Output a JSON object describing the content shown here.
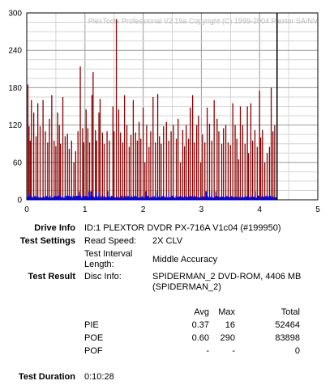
{
  "chart_data": {
    "type": "bar",
    "watermark": "PlexTools Professional V2.19a Copyright (C) 1999-2004 Plextor SA/NV",
    "xlim": [
      0,
      5
    ],
    "ylim": [
      0,
      300
    ],
    "x_ticks": [
      "0",
      "1",
      "2",
      "3",
      "4",
      "5"
    ],
    "y_ticks": [
      "0",
      "60",
      "120",
      "180",
      "240",
      "300"
    ],
    "end_marker_x": 4.3,
    "series": [
      {
        "color": "#8b0000",
        "points": [
          [
            0.02,
            185
          ],
          [
            0.04,
            118
          ],
          [
            0.06,
            95
          ],
          [
            0.08,
            160
          ],
          [
            0.12,
            140
          ],
          [
            0.16,
            102
          ],
          [
            0.19,
            155
          ],
          [
            0.23,
            118
          ],
          [
            0.28,
            160
          ],
          [
            0.32,
            110
          ],
          [
            0.36,
            92
          ],
          [
            0.39,
            130
          ],
          [
            0.43,
            168
          ],
          [
            0.47,
            95
          ],
          [
            0.5,
            86
          ],
          [
            0.53,
            140
          ],
          [
            0.56,
            120
          ],
          [
            0.58,
            90
          ],
          [
            0.62,
            165
          ],
          [
            0.66,
            102
          ],
          [
            0.7,
            106
          ],
          [
            0.73,
            82
          ],
          [
            0.77,
            95
          ],
          [
            0.81,
            60
          ],
          [
            0.84,
            78
          ],
          [
            0.88,
            110
          ],
          [
            0.92,
            214
          ],
          [
            0.96,
            115
          ],
          [
            0.98,
            92
          ],
          [
            1.02,
            145
          ],
          [
            1.05,
            115
          ],
          [
            1.08,
            92
          ],
          [
            1.12,
            168
          ],
          [
            1.14,
            205
          ],
          [
            1.18,
            112
          ],
          [
            1.2,
            95
          ],
          [
            1.24,
            140
          ],
          [
            1.26,
            162
          ],
          [
            1.3,
            108
          ],
          [
            1.33,
            90
          ],
          [
            1.38,
            110
          ],
          [
            1.42,
            95
          ],
          [
            1.48,
            150
          ],
          [
            1.5,
            110
          ],
          [
            1.54,
            290
          ],
          [
            1.58,
            145
          ],
          [
            1.61,
            108
          ],
          [
            1.65,
            92
          ],
          [
            1.68,
            168
          ],
          [
            1.72,
            120
          ],
          [
            1.76,
            85
          ],
          [
            1.79,
            104
          ],
          [
            1.83,
            160
          ],
          [
            1.87,
            108
          ],
          [
            1.9,
            95
          ],
          [
            1.93,
            125
          ],
          [
            1.96,
            98
          ],
          [
            2,
            148
          ],
          [
            2.03,
            60
          ],
          [
            2.06,
            120
          ],
          [
            2.1,
            85
          ],
          [
            2.13,
            110
          ],
          [
            2.17,
            165
          ],
          [
            2.21,
            92
          ],
          [
            2.25,
            170
          ],
          [
            2.28,
            102
          ],
          [
            2.31,
            90
          ],
          [
            2.35,
            118
          ],
          [
            2.4,
            125
          ],
          [
            2.44,
            95
          ],
          [
            2.48,
            110
          ],
          [
            2.52,
            120
          ],
          [
            2.57,
            98
          ],
          [
            2.6,
            130
          ],
          [
            2.64,
            60
          ],
          [
            2.68,
            112
          ],
          [
            2.71,
            86
          ],
          [
            2.74,
            120
          ],
          [
            2.78,
            98
          ],
          [
            2.81,
            148
          ],
          [
            2.85,
            168
          ],
          [
            2.88,
            92
          ],
          [
            2.92,
            120
          ],
          [
            2.95,
            135
          ],
          [
            2.99,
            60
          ],
          [
            3.02,
            105
          ],
          [
            3.06,
            92
          ],
          [
            3.1,
            148
          ],
          [
            3.14,
            122
          ],
          [
            3.18,
            95
          ],
          [
            3.22,
            160
          ],
          [
            3.27,
            130
          ],
          [
            3.3,
            110
          ],
          [
            3.35,
            90
          ],
          [
            3.38,
            115
          ],
          [
            3.42,
            120
          ],
          [
            3.46,
            92
          ],
          [
            3.5,
            88
          ],
          [
            3.54,
            155
          ],
          [
            3.58,
            120
          ],
          [
            3.61,
            98
          ],
          [
            3.64,
            65
          ],
          [
            3.67,
            150
          ],
          [
            3.71,
            120
          ],
          [
            3.75,
            90
          ],
          [
            3.79,
            150
          ],
          [
            3.81,
            75
          ],
          [
            3.85,
            155
          ],
          [
            3.88,
            95
          ],
          [
            3.92,
            112
          ],
          [
            3.96,
            85
          ],
          [
            4.0,
            175
          ],
          [
            4.02,
            100
          ],
          [
            4.05,
            112
          ],
          [
            4.09,
            60
          ],
          [
            4.13,
            75
          ],
          [
            4.17,
            85
          ],
          [
            4.2,
            180
          ],
          [
            4.23,
            110
          ],
          [
            4.26,
            120
          ]
        ]
      },
      {
        "color": "#0000ff",
        "baseline_level": 3,
        "peak_level": 14
      }
    ]
  },
  "info": {
    "drive_info_label": "Drive Info",
    "drive_info_value": "ID:1 PLEXTOR DVDR PX-716A V1c04 (#199950)",
    "test_settings_label": "Test Settings",
    "read_speed_label": "Read Speed:",
    "read_speed_value": "2X CLV",
    "interval_label_line1": "Test Interval",
    "interval_label_line2": "Length:",
    "interval_value": "Middle Accuracy",
    "test_result_label": "Test Result",
    "disc_info_label": "Disc Info:",
    "disc_info_line1": "SPIDERMAN_2 DVD-ROM, 4406 MB",
    "disc_info_line2": "(SPIDERMAN_2)",
    "test_duration_label": "Test Duration",
    "test_duration_value": "0:10:28"
  },
  "stats": {
    "headers": {
      "avg": "Avg",
      "max": "Max",
      "total": "Total"
    },
    "rows": [
      {
        "name": "PIE",
        "avg": "0.37",
        "max": "16",
        "total": "52464"
      },
      {
        "name": "POE",
        "avg": "0.60",
        "max": "290",
        "total": "83898"
      },
      {
        "name": "POF",
        "avg": "-",
        "max": "-",
        "total": "0"
      }
    ]
  }
}
